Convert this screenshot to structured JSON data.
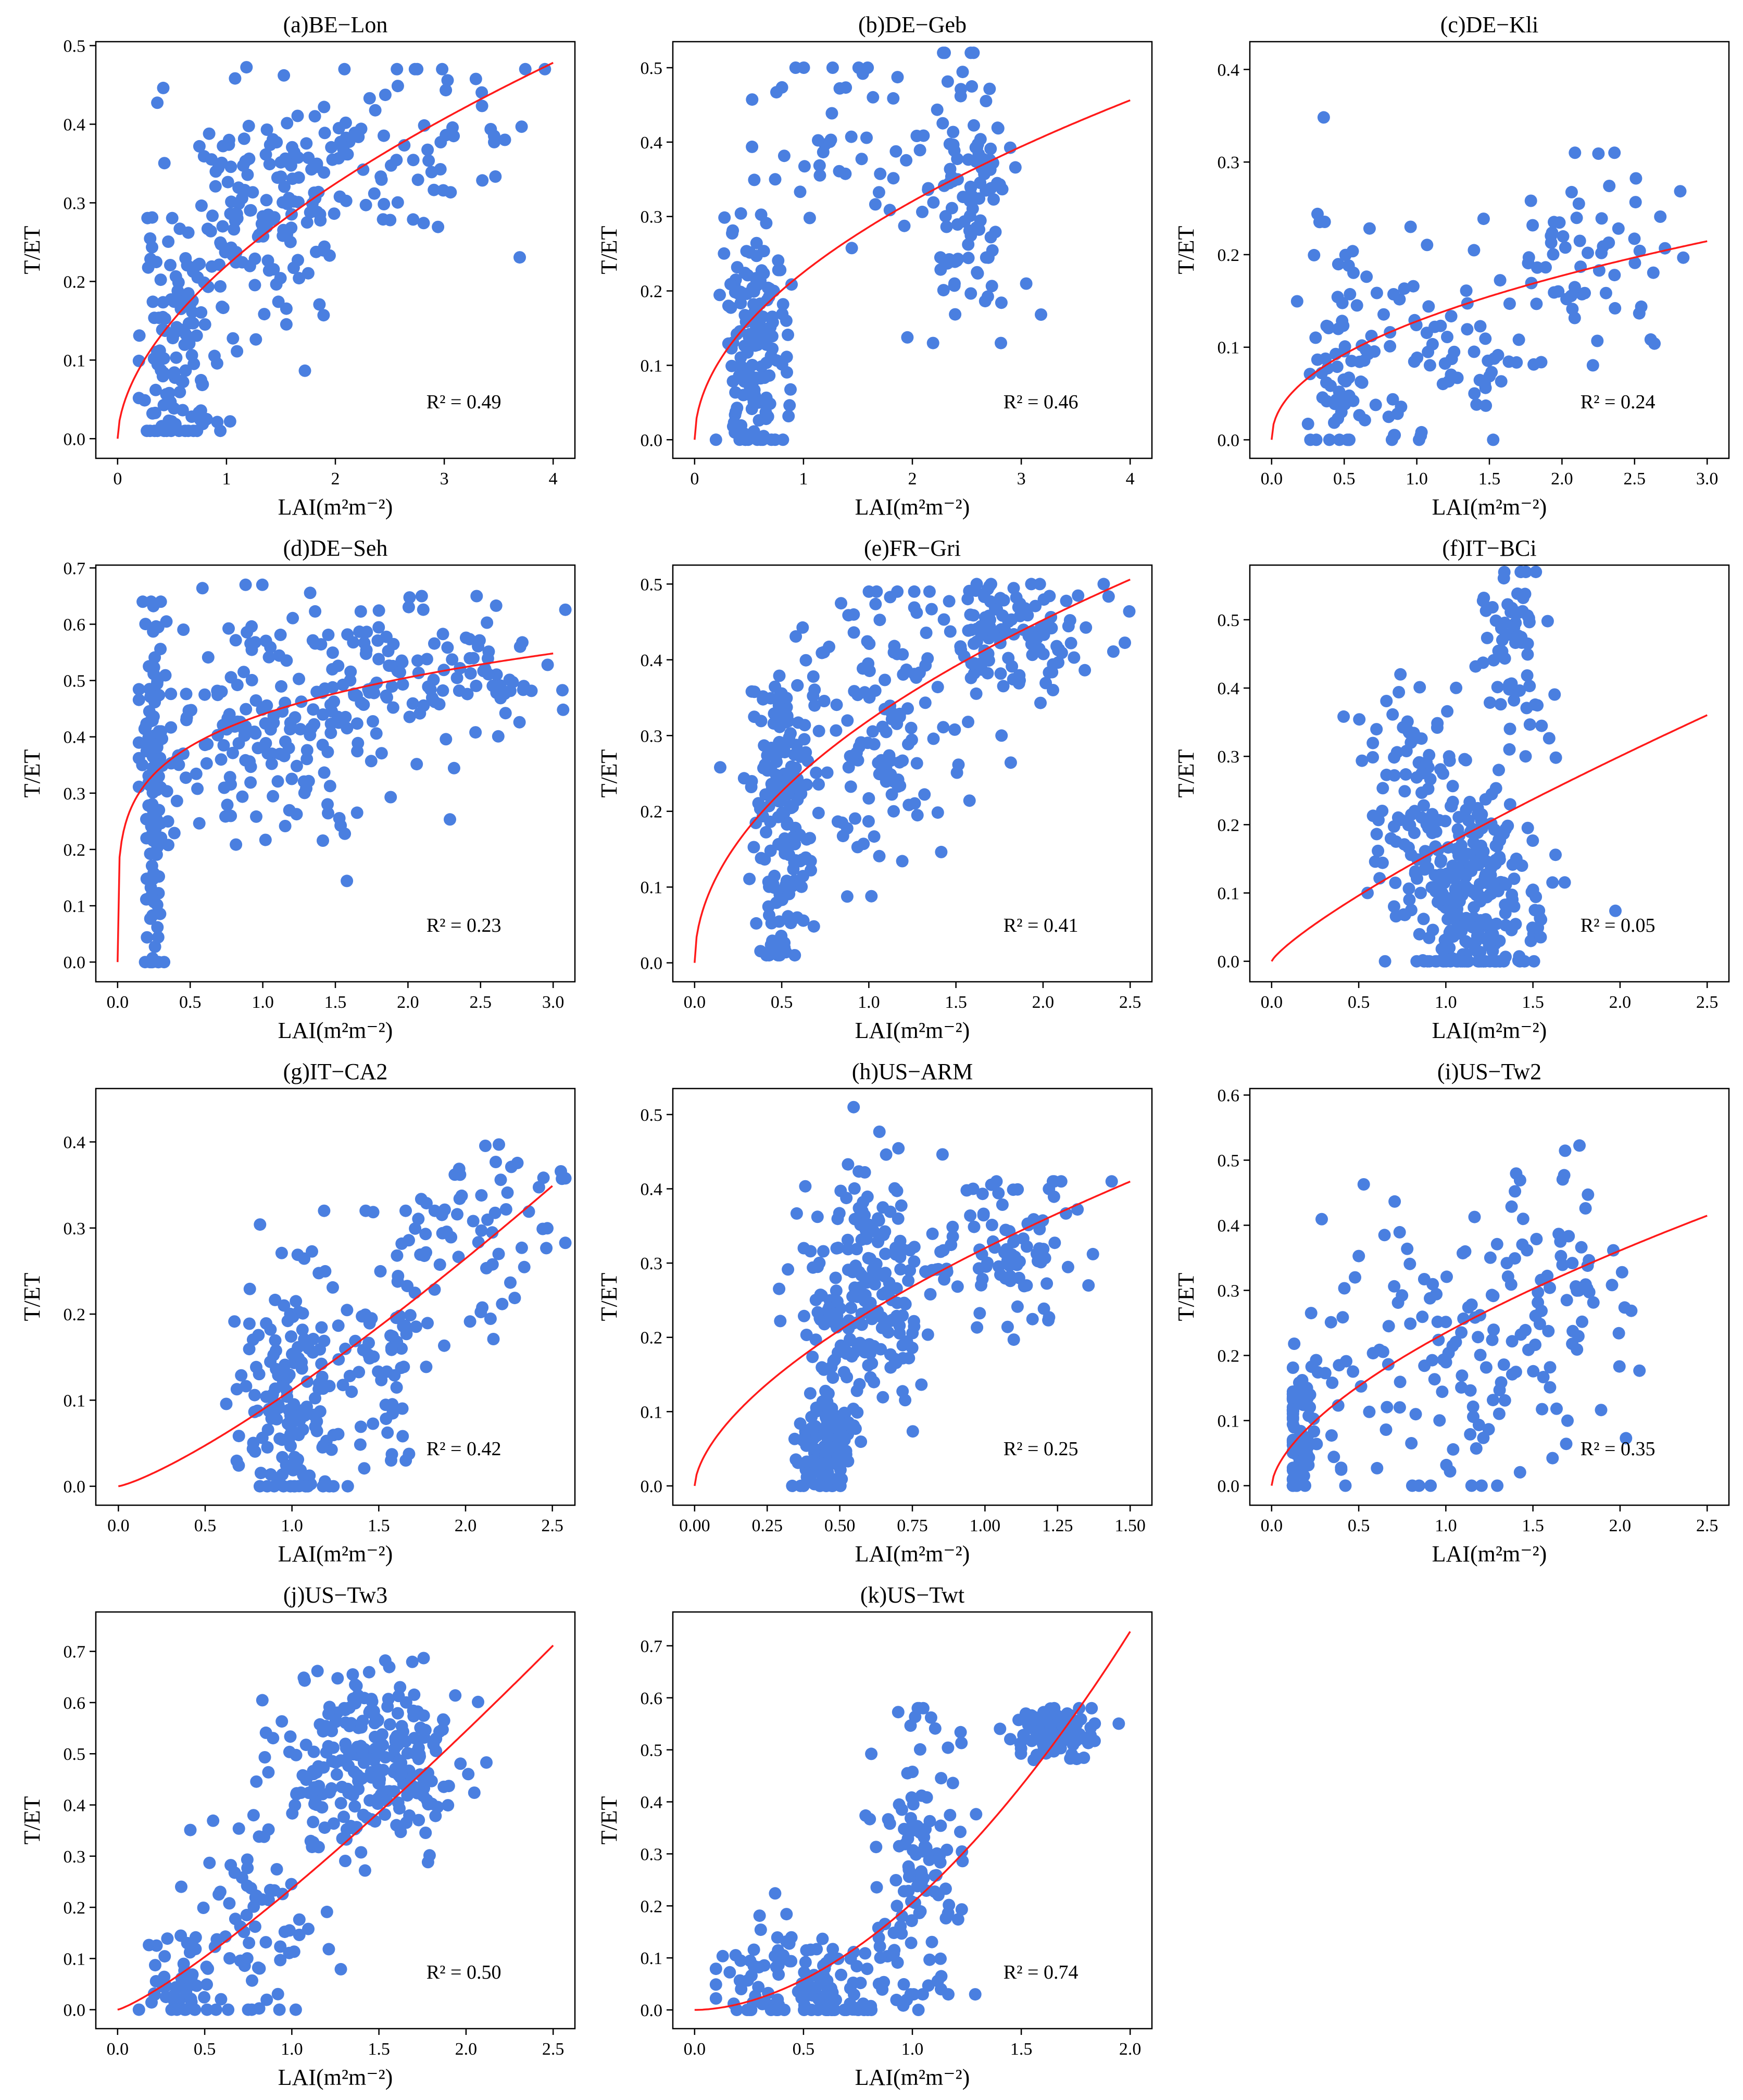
{
  "chart_data": [
    {
      "type": "scatter",
      "title": "(a)BE−Lon",
      "xlabel": "LAI(m²m⁻²)",
      "ylabel": "T/ET",
      "r2_label": "R² = 0.49",
      "xlim": [
        -0.2,
        4.2
      ],
      "ylim": [
        -0.025,
        0.505
      ],
      "xticks": [
        0,
        1,
        2,
        3,
        4
      ],
      "xtick_labels": [
        "0",
        "1",
        "2",
        "3",
        "4"
      ],
      "yticks": [
        0,
        0.1,
        0.2,
        0.3,
        0.4,
        0.5
      ],
      "ytick_labels": [
        "0.0",
        "0.1",
        "0.2",
        "0.3",
        "0.4",
        "0.5"
      ],
      "fit": {
        "a": 0.22,
        "b": 0.56,
        "x0": 0,
        "x1": 4
      },
      "color": "#4a7fe0",
      "points": {
        "seed": 11,
        "n": 330,
        "clusters": [
          {
            "frac": 0.35,
            "cx": 0.55,
            "sx": 0.18,
            "cy": 0.1,
            "sy": 0.08,
            "ylo": 0.01,
            "yhi": 0.31
          },
          {
            "frac": 0.4,
            "cx": 1.3,
            "sx": 0.35,
            "cy": 0.29,
            "sy": 0.08,
            "ylo": 0.07,
            "yhi": 0.49
          },
          {
            "frac": 0.25,
            "cx": 2.5,
            "sx": 0.6,
            "cy": 0.36,
            "sy": 0.06,
            "ylo": 0.15,
            "yhi": 0.47
          }
        ]
      }
    },
    {
      "type": "scatter",
      "title": "(b)DE−Geb",
      "xlabel": "LAI(m²m⁻²)",
      "ylabel": "T/ET",
      "r2_label": "R² = 0.46",
      "xlim": [
        -0.2,
        4.2
      ],
      "ylim": [
        -0.025,
        0.535
      ],
      "xticks": [
        0,
        1,
        2,
        3,
        4
      ],
      "xtick_labels": [
        "0",
        "1",
        "2",
        "3",
        "4"
      ],
      "yticks": [
        0,
        0.1,
        0.2,
        0.3,
        0.4,
        0.5
      ],
      "ytick_labels": [
        "0.0",
        "0.1",
        "0.2",
        "0.3",
        "0.4",
        "0.5"
      ],
      "fit": {
        "a": 0.225,
        "b": 0.51,
        "x0": 0,
        "x1": 4
      },
      "color": "#4a7fe0",
      "points": {
        "seed": 23,
        "n": 300,
        "clusters": [
          {
            "frac": 0.5,
            "cx": 0.55,
            "sx": 0.15,
            "cy": 0.12,
            "sy": 0.09,
            "ylo": 0.0,
            "yhi": 0.35
          },
          {
            "frac": 0.15,
            "cx": 1.3,
            "sx": 0.45,
            "cy": 0.38,
            "sy": 0.08,
            "ylo": 0.03,
            "yhi": 0.5
          },
          {
            "frac": 0.35,
            "cx": 2.5,
            "sx": 0.2,
            "cy": 0.33,
            "sy": 0.1,
            "ylo": 0.13,
            "yhi": 0.52
          }
        ]
      }
    },
    {
      "type": "scatter",
      "title": "(c)DE−Kli",
      "xlabel": "LAI(m²m⁻²)",
      "ylabel": "T/ET",
      "r2_label": "R² = 0.24",
      "xlim": [
        -0.15,
        3.15
      ],
      "ylim": [
        -0.02,
        0.43
      ],
      "xticks": [
        0,
        0.5,
        1,
        1.5,
        2,
        2.5,
        3
      ],
      "xtick_labels": [
        "0.0",
        "0.5",
        "1.0",
        "1.5",
        "2.0",
        "2.5",
        "3.0"
      ],
      "yticks": [
        0,
        0.1,
        0.2,
        0.3,
        0.4
      ],
      "ytick_labels": [
        "0.0",
        "0.1",
        "0.2",
        "0.3",
        "0.4"
      ],
      "fit": {
        "a": 0.128,
        "b": 0.47,
        "x0": 0,
        "x1": 3
      },
      "color": "#4a7fe0",
      "points": {
        "seed": 37,
        "n": 200,
        "clusters": [
          {
            "frac": 0.35,
            "cx": 0.5,
            "sx": 0.12,
            "cy": 0.1,
            "sy": 0.08,
            "ylo": 0.0,
            "yhi": 0.41
          },
          {
            "frac": 0.35,
            "cx": 1.25,
            "sx": 0.35,
            "cy": 0.09,
            "sy": 0.06,
            "ylo": 0.0,
            "yhi": 0.3
          },
          {
            "frac": 0.3,
            "cx": 2.2,
            "sx": 0.3,
            "cy": 0.2,
            "sy": 0.05,
            "ylo": 0.08,
            "yhi": 0.31
          }
        ]
      }
    },
    {
      "type": "scatter",
      "title": "(d)DE−Seh",
      "xlabel": "LAI(m²m⁻²)",
      "ylabel": "T/ET",
      "r2_label": "R² = 0.23",
      "xlim": [
        -0.15,
        3.15
      ],
      "ylim": [
        -0.035,
        0.705
      ],
      "xticks": [
        0,
        0.5,
        1,
        1.5,
        2,
        2.5,
        3
      ],
      "xtick_labels": [
        "0.0",
        "0.5",
        "1.0",
        "1.5",
        "2.0",
        "2.5",
        "3.0"
      ],
      "yticks": [
        0,
        0.1,
        0.2,
        0.3,
        0.4,
        0.5,
        0.6,
        0.7
      ],
      "ytick_labels": [
        "0.0",
        "0.1",
        "0.2",
        "0.3",
        "0.4",
        "0.5",
        "0.6",
        "0.7"
      ],
      "fit": {
        "a": 0.44,
        "b": 0.2,
        "x0": 0,
        "x1": 3
      },
      "color": "#4a7fe0",
      "points": {
        "seed": 41,
        "n": 400,
        "clusters": [
          {
            "frac": 0.28,
            "cx": 0.25,
            "sx": 0.03,
            "cy": 0.3,
            "sy": 0.2,
            "ylo": 0.0,
            "yhi": 0.64
          },
          {
            "frac": 0.47,
            "cx": 1.0,
            "sx": 0.45,
            "cy": 0.43,
            "sy": 0.12,
            "ylo": 0.05,
            "yhi": 0.67
          },
          {
            "frac": 0.25,
            "cx": 2.2,
            "sx": 0.45,
            "cy": 0.52,
            "sy": 0.06,
            "ylo": 0.35,
            "yhi": 0.65
          }
        ]
      }
    },
    {
      "type": "scatter",
      "title": "(e)FR−Gri",
      "xlabel": "LAI(m²m⁻²)",
      "ylabel": "T/ET",
      "r2_label": "R² = 0.41",
      "xlim": [
        -0.125,
        2.625
      ],
      "ylim": [
        -0.025,
        0.525
      ],
      "xticks": [
        0,
        0.5,
        1,
        1.5,
        2,
        2.5
      ],
      "xtick_labels": [
        "0.0",
        "0.5",
        "1.0",
        "1.5",
        "2.0",
        "2.5"
      ],
      "yticks": [
        0,
        0.1,
        0.2,
        0.3,
        0.4,
        0.5
      ],
      "ytick_labels": [
        "0.0",
        "0.1",
        "0.2",
        "0.3",
        "0.4",
        "0.5"
      ],
      "fit": {
        "a": 0.32,
        "b": 0.5,
        "x0": 0,
        "x1": 2.5
      },
      "color": "#4a7fe0",
      "points": {
        "seed": 53,
        "n": 430,
        "clusters": [
          {
            "frac": 0.4,
            "cx": 0.5,
            "sx": 0.08,
            "cy": 0.2,
            "sy": 0.1,
            "ylo": 0.01,
            "yhi": 0.5
          },
          {
            "frac": 0.3,
            "cx": 1.0,
            "sx": 0.25,
            "cy": 0.3,
            "sy": 0.1,
            "ylo": 0.05,
            "yhi": 0.49
          },
          {
            "frac": 0.3,
            "cx": 1.8,
            "sx": 0.25,
            "cy": 0.43,
            "sy": 0.04,
            "ylo": 0.3,
            "yhi": 0.5
          }
        ]
      }
    },
    {
      "type": "scatter",
      "title": "(f)IT−BCi",
      "xlabel": "LAI(m²m⁻²)",
      "ylabel": "T/ET",
      "r2_label": "R² = 0.05",
      "xlim": [
        -0.125,
        2.625
      ],
      "ylim": [
        -0.03,
        0.58
      ],
      "xticks": [
        0,
        0.5,
        1,
        1.5,
        2,
        2.5
      ],
      "xtick_labels": [
        "0.0",
        "0.5",
        "1.0",
        "1.5",
        "2.0",
        "2.5"
      ],
      "yticks": [
        0,
        0.1,
        0.2,
        0.3,
        0.4,
        0.5
      ],
      "ytick_labels": [
        "0.0",
        "0.1",
        "0.2",
        "0.3",
        "0.4",
        "0.5"
      ],
      "fit": {
        "a": 0.17,
        "b": 0.82,
        "x0": 0,
        "x1": 2.5
      },
      "color": "#4a7fe0",
      "points": {
        "seed": 67,
        "n": 420,
        "clusters": [
          {
            "frac": 0.65,
            "cx": 1.15,
            "sx": 0.2,
            "cy": 0.09,
            "sy": 0.08,
            "ylo": 0.0,
            "yhi": 0.3
          },
          {
            "frac": 0.2,
            "cx": 0.8,
            "sx": 0.15,
            "cy": 0.26,
            "sy": 0.08,
            "ylo": 0.1,
            "yhi": 0.42
          },
          {
            "frac": 0.15,
            "cx": 1.4,
            "sx": 0.1,
            "cy": 0.45,
            "sy": 0.07,
            "ylo": 0.28,
            "yhi": 0.57
          }
        ]
      }
    },
    {
      "type": "scatter",
      "title": "(g)IT−CA2",
      "xlabel": "LAI(m²m⁻²)",
      "ylabel": "T/ET",
      "r2_label": "R² = 0.42",
      "xlim": [
        -0.13,
        2.63
      ],
      "ylim": [
        -0.022,
        0.462
      ],
      "xticks": [
        0,
        0.5,
        1,
        1.5,
        2,
        2.5
      ],
      "xtick_labels": [
        "0.0",
        "0.5",
        "1.0",
        "1.5",
        "2.0",
        "2.5"
      ],
      "yticks": [
        0,
        0.1,
        0.2,
        0.3,
        0.4
      ],
      "ytick_labels": [
        "0.0",
        "0.1",
        "0.2",
        "0.3",
        "0.4"
      ],
      "fit": {
        "a": 0.112,
        "b": 1.24,
        "x0": 0,
        "x1": 2.5
      },
      "color": "#4a7fe0",
      "points": {
        "seed": 79,
        "n": 290,
        "clusters": [
          {
            "frac": 0.55,
            "cx": 1.0,
            "sx": 0.15,
            "cy": 0.09,
            "sy": 0.07,
            "ylo": 0.0,
            "yhi": 0.36
          },
          {
            "frac": 0.25,
            "cx": 1.5,
            "sx": 0.2,
            "cy": 0.18,
            "sy": 0.07,
            "ylo": 0.03,
            "yhi": 0.32
          },
          {
            "frac": 0.2,
            "cx": 2.1,
            "sx": 0.25,
            "cy": 0.3,
            "sy": 0.07,
            "ylo": 0.02,
            "yhi": 0.44
          }
        ]
      }
    },
    {
      "type": "scatter",
      "title": "(h)US−ARM",
      "xlabel": "LAI(m²m⁻²)",
      "ylabel": "T/ET",
      "r2_label": "R² = 0.25",
      "xlim": [
        -0.075,
        1.575
      ],
      "ylim": [
        -0.026,
        0.535
      ],
      "xticks": [
        0,
        0.25,
        0.5,
        0.75,
        1,
        1.25,
        1.5
      ],
      "xtick_labels": [
        "0.00",
        "0.25",
        "0.50",
        "0.75",
        "1.00",
        "1.25",
        "1.50"
      ],
      "yticks": [
        0,
        0.1,
        0.2,
        0.3,
        0.4,
        0.5
      ],
      "ytick_labels": [
        "0.0",
        "0.1",
        "0.2",
        "0.3",
        "0.4",
        "0.5"
      ],
      "fit": {
        "a": 0.32,
        "b": 0.61,
        "x0": 0,
        "x1": 1.5
      },
      "color": "#4a7fe0",
      "points": {
        "seed": 97,
        "n": 420,
        "clusters": [
          {
            "frac": 0.3,
            "cx": 0.45,
            "sx": 0.05,
            "cy": 0.05,
            "sy": 0.04,
            "ylo": 0.0,
            "yhi": 0.18
          },
          {
            "frac": 0.5,
            "cx": 0.6,
            "sx": 0.12,
            "cy": 0.26,
            "sy": 0.08,
            "ylo": 0.01,
            "yhi": 0.51
          },
          {
            "frac": 0.2,
            "cx": 1.1,
            "sx": 0.12,
            "cy": 0.32,
            "sy": 0.05,
            "ylo": 0.19,
            "yhi": 0.41
          }
        ]
      }
    },
    {
      "type": "scatter",
      "title": "(i)US−Tw2",
      "xlabel": "LAI(m²m⁻²)",
      "ylabel": "T/ET",
      "r2_label": "R² = 0.35",
      "xlim": [
        -0.125,
        2.625
      ],
      "ylim": [
        -0.03,
        0.61
      ],
      "xticks": [
        0,
        0.5,
        1,
        1.5,
        2,
        2.5
      ],
      "xtick_labels": [
        "0.0",
        "0.5",
        "1.0",
        "1.5",
        "2.0",
        "2.5"
      ],
      "yticks": [
        0,
        0.1,
        0.2,
        0.3,
        0.4,
        0.5,
        0.6
      ],
      "ytick_labels": [
        "0.0",
        "0.1",
        "0.2",
        "0.3",
        "0.4",
        "0.5",
        "0.6"
      ],
      "fit": {
        "a": 0.235,
        "b": 0.62,
        "x0": 0,
        "x1": 2.5
      },
      "color": "#4a7fe0",
      "points": {
        "seed": 101,
        "n": 260,
        "clusters": [
          {
            "frac": 0.3,
            "cx": 0.15,
            "sx": 0.06,
            "cy": 0.08,
            "sy": 0.06,
            "ylo": 0.0,
            "yhi": 0.25
          },
          {
            "frac": 0.45,
            "cx": 0.95,
            "sx": 0.35,
            "cy": 0.2,
            "sy": 0.12,
            "ylo": 0.0,
            "yhi": 0.57
          },
          {
            "frac": 0.25,
            "cx": 1.7,
            "sx": 0.2,
            "cy": 0.33,
            "sy": 0.12,
            "ylo": 0.06,
            "yhi": 0.59
          }
        ]
      }
    },
    {
      "type": "scatter",
      "title": "(j)US−Tw3",
      "xlabel": "LAI(m²m⁻²)",
      "ylabel": "T/ET",
      "r2_label": "R² = 0.50",
      "xlim": [
        -0.125,
        2.625
      ],
      "ylim": [
        -0.037,
        0.777
      ],
      "xticks": [
        0,
        0.5,
        1,
        1.5,
        2,
        2.5
      ],
      "xtick_labels": [
        "0.0",
        "0.5",
        "1.0",
        "1.5",
        "2.0",
        "2.5"
      ],
      "yticks": [
        0,
        0.1,
        0.2,
        0.3,
        0.4,
        0.5,
        0.6,
        0.7
      ],
      "ytick_labels": [
        "0.0",
        "0.1",
        "0.2",
        "0.3",
        "0.4",
        "0.5",
        "0.6",
        "0.7"
      ],
      "fit": {
        "a": 0.237,
        "b": 1.2,
        "x0": 0,
        "x1": 2.5
      },
      "color": "#4a7fe0",
      "points": {
        "seed": 113,
        "n": 380,
        "clusters": [
          {
            "frac": 0.12,
            "cx": 0.35,
            "sx": 0.12,
            "cy": 0.05,
            "sy": 0.05,
            "ylo": 0.0,
            "yhi": 0.44
          },
          {
            "frac": 0.2,
            "cx": 0.8,
            "sx": 0.2,
            "cy": 0.18,
            "sy": 0.12,
            "ylo": 0.0,
            "yhi": 0.45
          },
          {
            "frac": 0.68,
            "cx": 1.45,
            "sx": 0.25,
            "cy": 0.48,
            "sy": 0.09,
            "ylo": 0.06,
            "yhi": 0.75
          }
        ]
      }
    },
    {
      "type": "scatter",
      "title": "(k)US−Twt",
      "xlabel": "LAI(m²m⁻²)",
      "ylabel": "T/ET",
      "r2_label": "R² = 0.74",
      "xlim": [
        -0.1,
        2.1
      ],
      "ylim": [
        -0.036,
        0.765
      ],
      "xticks": [
        0,
        0.5,
        1,
        1.5,
        2
      ],
      "xtick_labels": [
        "0.0",
        "0.5",
        "1.0",
        "1.5",
        "2.0"
      ],
      "yticks": [
        0,
        0.1,
        0.2,
        0.3,
        0.4,
        0.5,
        0.6,
        0.7
      ],
      "ytick_labels": [
        "0.0",
        "0.1",
        "0.2",
        "0.3",
        "0.4",
        "0.5",
        "0.6",
        "0.7"
      ],
      "fit": {
        "a": 0.206,
        "b": 1.82,
        "x0": 0,
        "x1": 2
      },
      "color": "#4a7fe0",
      "points": {
        "seed": 127,
        "n": 380,
        "clusters": [
          {
            "frac": 0.35,
            "cx": 1.65,
            "sx": 0.1,
            "cy": 0.54,
            "sy": 0.025,
            "ylo": 0.47,
            "yhi": 0.58
          },
          {
            "frac": 0.3,
            "cx": 1.05,
            "sx": 0.1,
            "cy": 0.3,
            "sy": 0.15,
            "ylo": 0.03,
            "yhi": 0.58
          },
          {
            "frac": 0.35,
            "cx": 0.55,
            "sx": 0.2,
            "cy": 0.05,
            "sy": 0.06,
            "ylo": 0.0,
            "yhi": 0.26
          }
        ]
      }
    }
  ]
}
